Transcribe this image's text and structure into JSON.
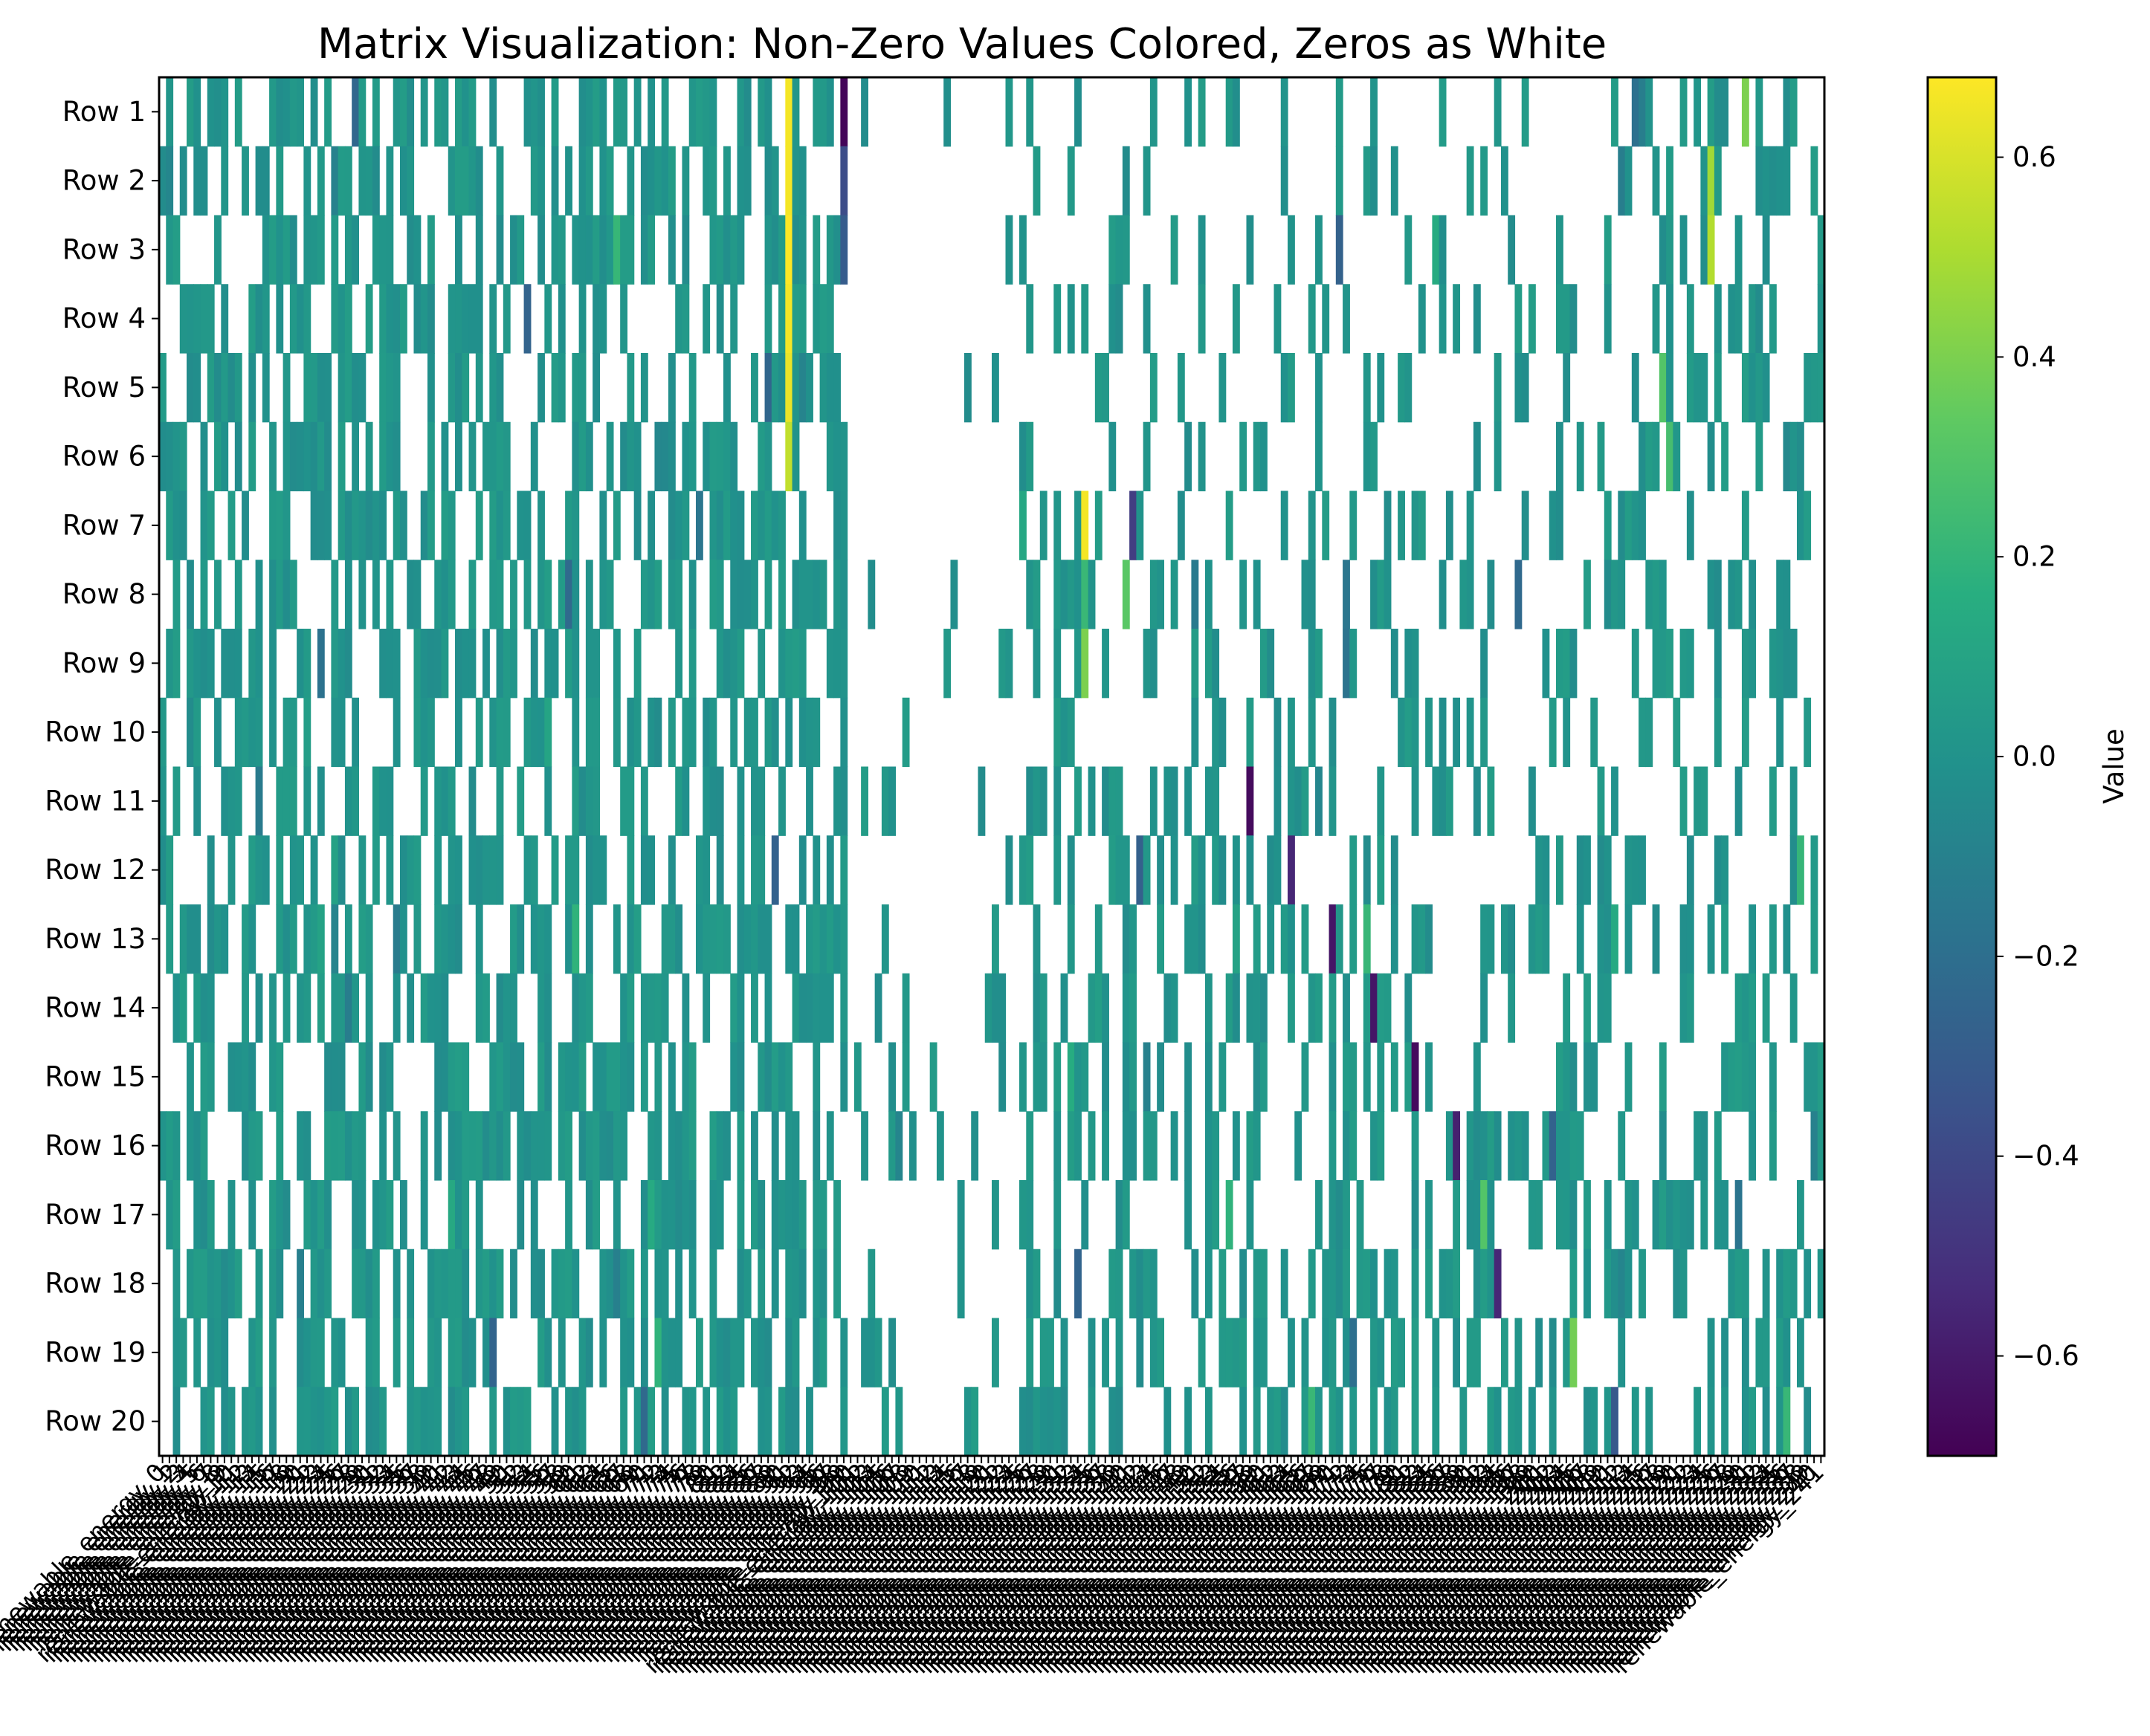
{
  "chart_data": {
    "type": "heatmap",
    "title": "Matrix Visualization: Non-Zero Values Colored, Zeros as White",
    "colormap": "viridis",
    "zero_color": "#ffffff",
    "rows": [
      "Row 1",
      "Row 2",
      "Row 3",
      "Row 4",
      "Row 5",
      "Row 6",
      "Row 7",
      "Row 8",
      "Row 9",
      "Row 10",
      "Row 11",
      "Row 12",
      "Row 13",
      "Row 14",
      "Row 15",
      "Row 16",
      "Row 17",
      "Row 18",
      "Row 19",
      "Row 20"
    ],
    "n_columns": 242,
    "column_label_prefix": "renewable_energy_",
    "colorbar": {
      "label": "Value",
      "vmin": -0.7,
      "vmax": 0.68,
      "ticks": [
        -0.6,
        -0.4,
        -0.2,
        0.0,
        0.2,
        0.4,
        0.6
      ],
      "tick_labels": [
        "−0.6",
        "−0.4",
        "−0.2",
        "0.0",
        "0.2",
        "0.4",
        "0.6"
      ]
    },
    "highlight_cells": [
      {
        "row": 1,
        "col": 91,
        "value": 0.66
      },
      {
        "row": 2,
        "col": 91,
        "value": 0.66
      },
      {
        "row": 3,
        "col": 91,
        "value": 0.68
      },
      {
        "row": 4,
        "col": 91,
        "value": 0.66
      },
      {
        "row": 5,
        "col": 91,
        "value": 0.64
      },
      {
        "row": 6,
        "col": 91,
        "value": 0.55
      },
      {
        "row": 1,
        "col": 99,
        "value": -0.68
      },
      {
        "row": 2,
        "col": 99,
        "value": -0.38
      },
      {
        "row": 3,
        "col": 99,
        "value": -0.3
      },
      {
        "row": 7,
        "col": 134,
        "value": 0.66
      },
      {
        "row": 8,
        "col": 134,
        "value": 0.22
      },
      {
        "row": 9,
        "col": 134,
        "value": 0.4
      },
      {
        "row": 7,
        "col": 141,
        "value": -0.45
      },
      {
        "row": 8,
        "col": 140,
        "value": 0.32
      },
      {
        "row": 11,
        "col": 158,
        "value": -0.66
      },
      {
        "row": 12,
        "col": 164,
        "value": -0.55
      },
      {
        "row": 13,
        "col": 170,
        "value": -0.62
      },
      {
        "row": 14,
        "col": 176,
        "value": -0.62
      },
      {
        "row": 15,
        "col": 182,
        "value": -0.66
      },
      {
        "row": 16,
        "col": 188,
        "value": -0.58
      },
      {
        "row": 17,
        "col": 192,
        "value": 0.3
      },
      {
        "row": 18,
        "col": 194,
        "value": -0.55
      },
      {
        "row": 19,
        "col": 205,
        "value": 0.38
      },
      {
        "row": 20,
        "col": 211,
        "value": -0.32
      },
      {
        "row": 1,
        "col": 230,
        "value": 0.4
      },
      {
        "row": 2,
        "col": 225,
        "value": 0.48
      },
      {
        "row": 3,
        "col": 225,
        "value": 0.52
      },
      {
        "row": 5,
        "col": 218,
        "value": 0.3
      },
      {
        "row": 6,
        "col": 219,
        "value": 0.26
      }
    ]
  }
}
